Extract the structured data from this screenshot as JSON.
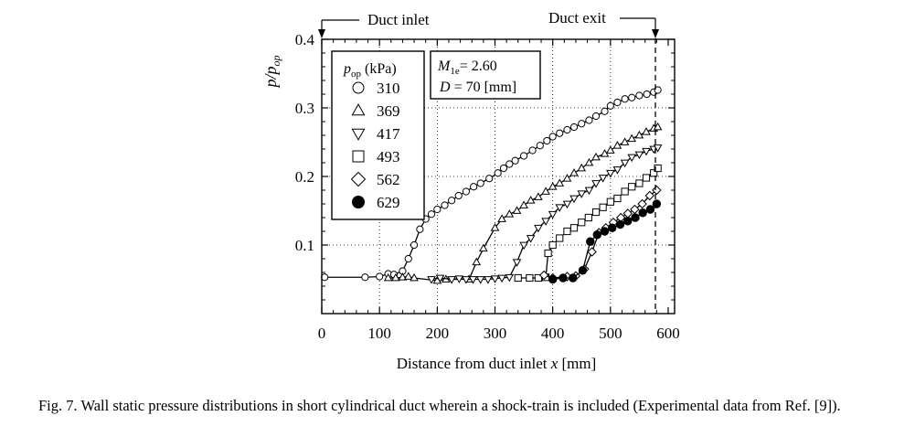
{
  "chart_data": {
    "type": "line",
    "ylabel_base": "p/p",
    "ylabel_sub": "op",
    "xlabel_text": "Distance from duct inlet ",
    "xlabel_var": "x",
    "xlabel_unit": " [mm]",
    "xlim": [
      0,
      600
    ],
    "ylim": [
      0,
      0.4
    ],
    "x_ticks": [
      0,
      100,
      200,
      300,
      400,
      500,
      600
    ],
    "x_tick_labels": [
      "0",
      "100",
      "200",
      "300",
      "400",
      "500",
      "600"
    ],
    "y_ticks": [
      0.1,
      0.2,
      0.3,
      0.4
    ],
    "y_tick_labels": [
      "0.1",
      "0.2",
      "0.3",
      "0.4"
    ],
    "grid": "dotted",
    "annotations": {
      "inlet": "Duct inlet",
      "exit": "Duct exit",
      "params_M_base": "M",
      "params_M_sub": "1e",
      "params_M_val": "= 2.60",
      "params_D_base": "D",
      "params_D_val": " = 70 [mm]"
    },
    "legend": {
      "title_base": "p",
      "title_sub": "op",
      "title_unit": " (kPa)",
      "placement": "top-left"
    },
    "series": [
      {
        "name": "310",
        "marker": "circle",
        "fill": "open",
        "x": [
          5,
          75,
          100,
          115,
          125,
          140,
          150,
          160,
          170,
          180,
          190,
          200,
          213,
          225,
          237,
          250,
          263,
          275,
          290,
          305,
          315,
          325,
          335,
          350,
          365,
          378,
          390,
          400,
          412,
          425,
          437,
          450,
          463,
          475,
          490,
          500,
          512,
          525,
          537,
          550,
          563,
          575,
          582
        ],
        "y": [
          0.053,
          0.053,
          0.054,
          0.058,
          0.057,
          0.062,
          0.08,
          0.1,
          0.123,
          0.138,
          0.145,
          0.152,
          0.158,
          0.165,
          0.172,
          0.178,
          0.185,
          0.19,
          0.197,
          0.205,
          0.212,
          0.218,
          0.223,
          0.23,
          0.238,
          0.245,
          0.252,
          0.258,
          0.263,
          0.268,
          0.272,
          0.277,
          0.282,
          0.288,
          0.295,
          0.303,
          0.308,
          0.313,
          0.315,
          0.318,
          0.32,
          0.323,
          0.326
        ]
      },
      {
        "name": "369",
        "marker": "triangle-up",
        "fill": "open",
        "x": [
          115,
          128,
          140,
          150,
          160,
          200,
          215,
          255,
          268,
          280,
          300,
          312,
          325,
          338,
          350,
          362,
          375,
          388,
          400,
          412,
          425,
          437,
          450,
          463,
          475,
          490,
          500,
          512,
          525,
          537,
          550,
          562,
          575,
          582
        ],
        "y": [
          0.052,
          0.052,
          0.053,
          0.054,
          0.052,
          0.048,
          0.05,
          0.05,
          0.075,
          0.095,
          0.125,
          0.138,
          0.145,
          0.15,
          0.158,
          0.165,
          0.17,
          0.178,
          0.185,
          0.19,
          0.197,
          0.205,
          0.212,
          0.22,
          0.228,
          0.233,
          0.238,
          0.245,
          0.25,
          0.255,
          0.26,
          0.265,
          0.27,
          0.272
        ]
      },
      {
        "name": "417",
        "marker": "triangle-down",
        "fill": "open",
        "x": [
          190,
          205,
          225,
          238,
          250,
          262,
          275,
          288,
          300,
          312,
          325,
          338,
          350,
          362,
          375,
          388,
          400,
          412,
          425,
          437,
          450,
          463,
          475,
          487,
          500,
          512,
          525,
          537,
          550,
          562,
          575,
          582
        ],
        "y": [
          0.05,
          0.052,
          0.05,
          0.051,
          0.05,
          0.05,
          0.05,
          0.05,
          0.051,
          0.052,
          0.053,
          0.075,
          0.1,
          0.11,
          0.125,
          0.135,
          0.145,
          0.155,
          0.16,
          0.168,
          0.175,
          0.18,
          0.19,
          0.198,
          0.205,
          0.21,
          0.22,
          0.228,
          0.232,
          0.237,
          0.24,
          0.242
        ]
      },
      {
        "name": "493",
        "marker": "square",
        "fill": "open",
        "x": [
          340,
          360,
          375,
          388,
          392,
          400,
          412,
          425,
          437,
          450,
          462,
          475,
          487,
          500,
          512,
          525,
          537,
          550,
          562,
          575,
          582
        ],
        "y": [
          0.052,
          0.052,
          0.052,
          0.053,
          0.088,
          0.1,
          0.11,
          0.12,
          0.125,
          0.133,
          0.14,
          0.148,
          0.155,
          0.163,
          0.168,
          0.178,
          0.185,
          0.19,
          0.198,
          0.205,
          0.212
        ]
      },
      {
        "name": "562",
        "marker": "diamond",
        "fill": "open",
        "x": [
          385,
          400,
          425,
          440,
          455,
          468,
          480,
          492,
          505,
          518,
          530,
          542,
          555,
          568,
          580
        ],
        "y": [
          0.056,
          0.052,
          0.054,
          0.055,
          0.065,
          0.09,
          0.118,
          0.125,
          0.133,
          0.14,
          0.146,
          0.152,
          0.16,
          0.172,
          0.18
        ]
      },
      {
        "name": "629",
        "marker": "circle",
        "fill": "solid",
        "x": [
          400,
          418,
          435,
          452,
          465,
          477,
          490,
          503,
          517,
          530,
          543,
          556,
          569,
          580
        ],
        "y": [
          0.05,
          0.052,
          0.052,
          0.063,
          0.105,
          0.115,
          0.12,
          0.125,
          0.13,
          0.135,
          0.14,
          0.147,
          0.152,
          0.16
        ]
      }
    ]
  },
  "caption": "Fig. 7.  Wall static pressure distributions in short cylindrical duct wherein a shock-train is included (Experimental data from Ref. [9])."
}
